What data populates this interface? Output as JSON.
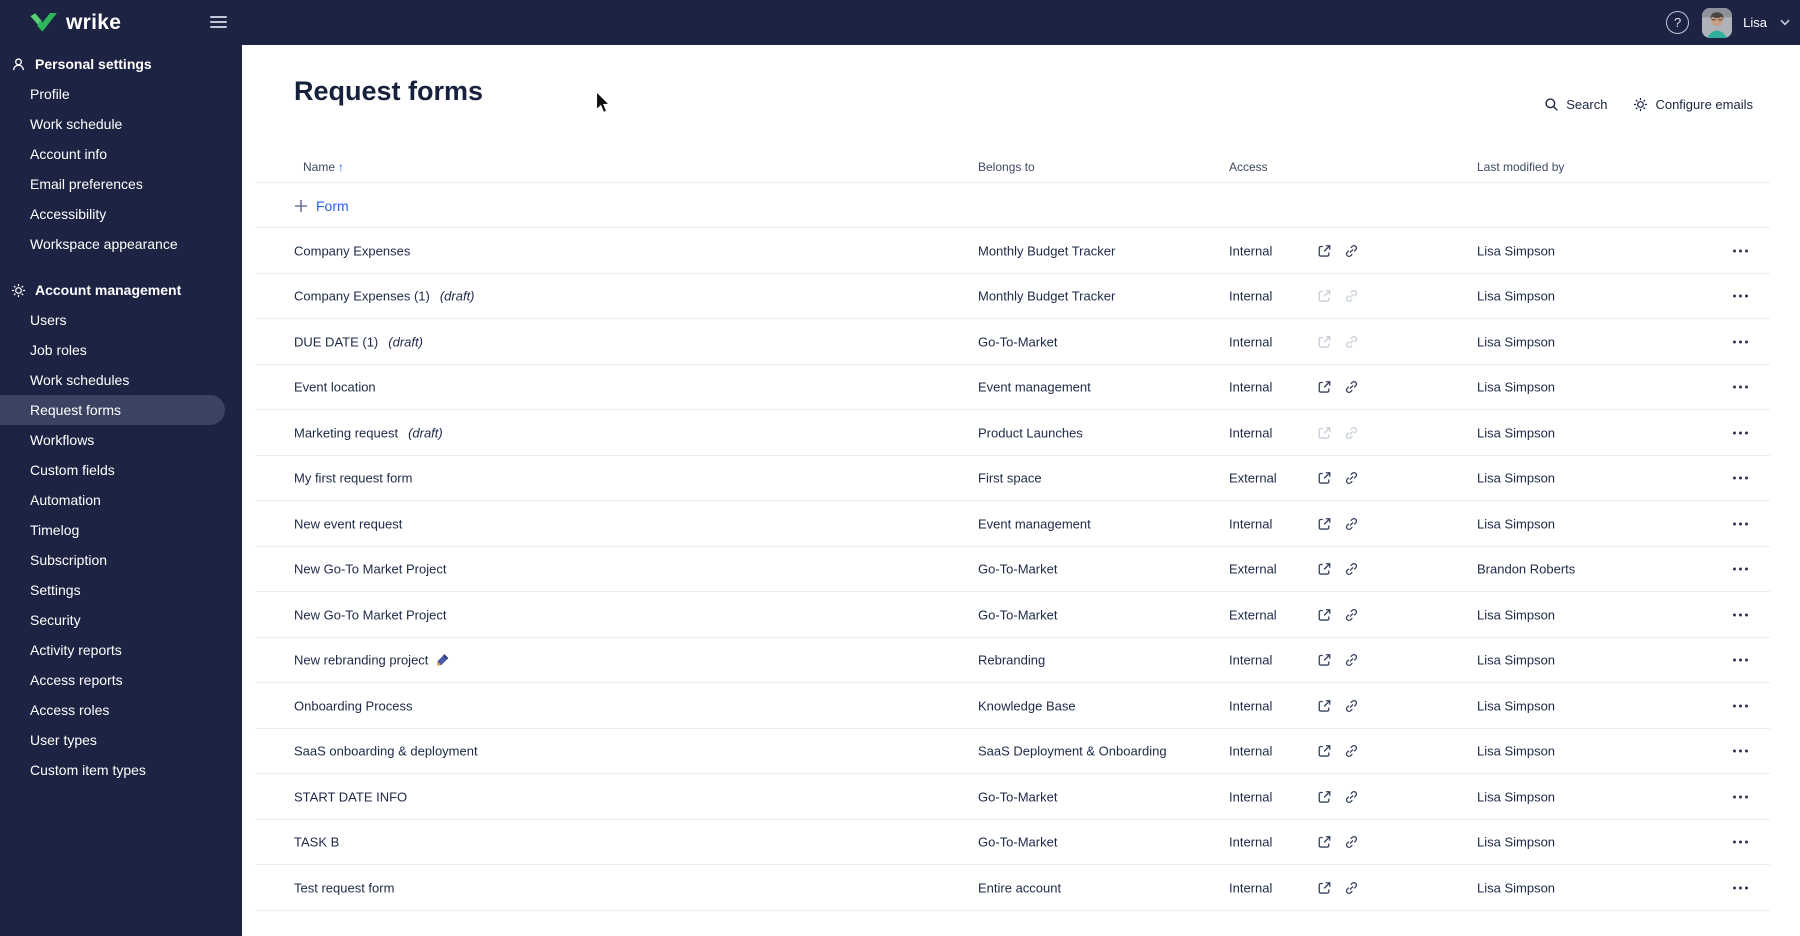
{
  "topbar": {
    "logo_text": "wrike",
    "user_name": "Lisa"
  },
  "sidebar": {
    "selected": "Request forms",
    "sections": [
      {
        "label": "Personal settings",
        "icon": "person-icon",
        "items": [
          "Profile",
          "Work schedule",
          "Account info",
          "Email preferences",
          "Accessibility",
          "Workspace appearance"
        ]
      },
      {
        "label": "Account management",
        "icon": "gear-icon",
        "items": [
          "Users",
          "Job roles",
          "Work schedules",
          "Request forms",
          "Workflows",
          "Custom fields",
          "Automation",
          "Timelog",
          "Subscription",
          "Settings",
          "Security",
          "Activity reports",
          "Access reports",
          "Access roles",
          "User types",
          "Custom item types"
        ]
      }
    ]
  },
  "main": {
    "title": "Request forms",
    "actions": {
      "search_label": "Search",
      "configure_emails_label": "Configure emails"
    },
    "table": {
      "columns": {
        "name": "Name",
        "belongs_to": "Belongs to",
        "access": "Access",
        "last_modified_by": "Last modified by"
      },
      "sort_glyph": "↑",
      "add_form_label": "Form",
      "draft_label": "(draft)",
      "rows": [
        {
          "name": "Company Expenses",
          "draft": false,
          "belongs_to": "Monthly Budget Tracker",
          "access": "Internal",
          "links_disabled": false,
          "last_modified_by": "Lisa Simpson"
        },
        {
          "name": "Company Expenses (1)",
          "draft": true,
          "belongs_to": "Monthly Budget Tracker",
          "access": "Internal",
          "links_disabled": true,
          "last_modified_by": "Lisa Simpson"
        },
        {
          "name": "DUE DATE (1)",
          "draft": true,
          "belongs_to": "Go-To-Market",
          "access": "Internal",
          "links_disabled": true,
          "last_modified_by": "Lisa Simpson"
        },
        {
          "name": "Event location",
          "draft": false,
          "belongs_to": "Event management",
          "access": "Internal",
          "links_disabled": false,
          "last_modified_by": "Lisa Simpson"
        },
        {
          "name": "Marketing request",
          "draft": true,
          "belongs_to": "Product Launches",
          "access": "Internal",
          "links_disabled": true,
          "last_modified_by": "Lisa Simpson"
        },
        {
          "name": "My first request form",
          "draft": false,
          "belongs_to": "First space",
          "access": "External",
          "links_disabled": false,
          "last_modified_by": "Lisa Simpson"
        },
        {
          "name": "New event request",
          "draft": false,
          "belongs_to": "Event management",
          "access": "Internal",
          "links_disabled": false,
          "last_modified_by": "Lisa Simpson"
        },
        {
          "name": "New Go-To Market Project",
          "draft": false,
          "belongs_to": "Go-To-Market",
          "access": "External",
          "links_disabled": false,
          "last_modified_by": "Brandon Roberts"
        },
        {
          "name": "New Go-To Market Project",
          "draft": false,
          "belongs_to": "Go-To-Market",
          "access": "External",
          "links_disabled": false,
          "last_modified_by": "Lisa Simpson"
        },
        {
          "name": "New rebranding project",
          "draft": false,
          "pen": true,
          "belongs_to": "Rebranding",
          "access": "Internal",
          "links_disabled": false,
          "last_modified_by": "Lisa Simpson"
        },
        {
          "name": "Onboarding Process",
          "draft": false,
          "belongs_to": "Knowledge Base",
          "access": "Internal",
          "links_disabled": false,
          "last_modified_by": "Lisa Simpson"
        },
        {
          "name": "SaaS onboarding & deployment",
          "draft": false,
          "belongs_to": "SaaS Deployment & Onboarding",
          "access": "Internal",
          "links_disabled": false,
          "last_modified_by": "Lisa Simpson"
        },
        {
          "name": "START DATE INFO",
          "draft": false,
          "belongs_to": "Go-To-Market",
          "access": "Internal",
          "links_disabled": false,
          "last_modified_by": "Lisa Simpson"
        },
        {
          "name": "TASK B",
          "draft": false,
          "belongs_to": "Go-To-Market",
          "access": "Internal",
          "links_disabled": false,
          "last_modified_by": "Lisa Simpson"
        },
        {
          "name": "Test request form",
          "draft": false,
          "belongs_to": "Entire account",
          "access": "Internal",
          "links_disabled": false,
          "last_modified_by": "Lisa Simpson"
        }
      ]
    }
  },
  "icons": {
    "search": "magnifier-icon",
    "configure_emails": "gear-icon",
    "help": "question-icon",
    "user_menu": "chevron-down-icon",
    "nav": "hamburger-icon",
    "sort": "arrow-up-icon",
    "add": "plus-icon",
    "row_open": "external-link-icon",
    "row_copy_link": "link-icon",
    "row_menu": "ellipsis-icon",
    "rebranding": "pen-icon"
  },
  "colors": {
    "brand_navy": "#1d2342",
    "accent_blue": "#2563e8",
    "logo_green": "#2cb55a",
    "divider": "#e9ecf0",
    "disabled_icon": "#c7cdd8",
    "selected_item_bg": "#3c4362"
  }
}
